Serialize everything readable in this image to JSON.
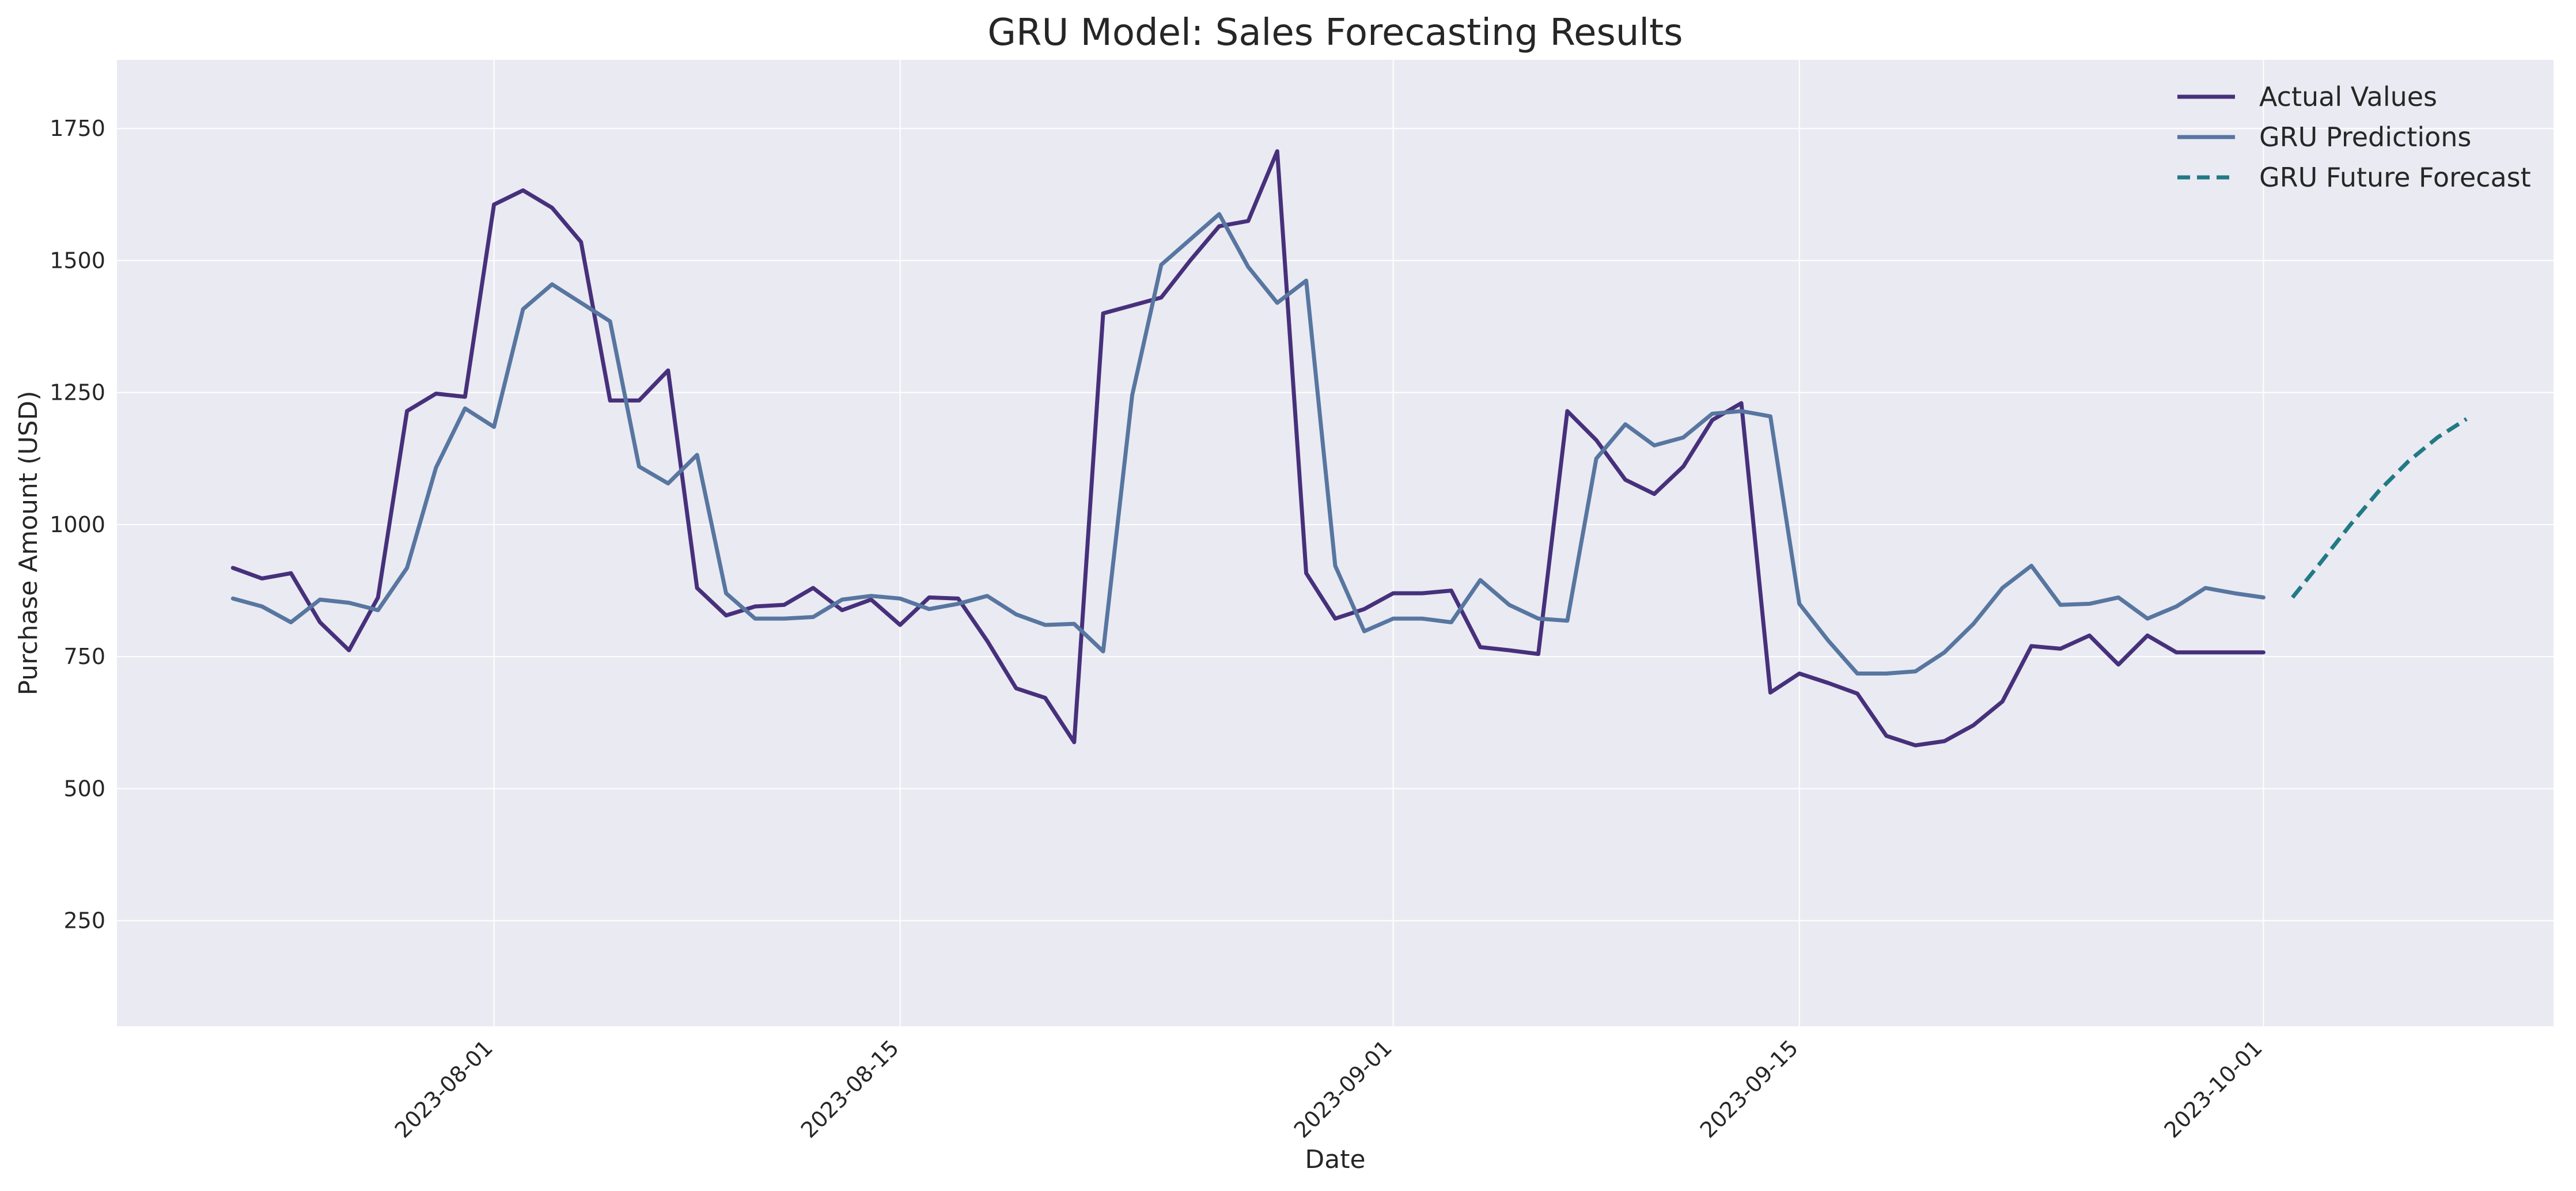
{
  "chart_data": {
    "type": "line",
    "title": "GRU Model: Sales Forecasting Results",
    "xlabel": "Date",
    "ylabel": "Purchase Amount (USD)",
    "x_ticks": [
      "2023-08-01",
      "2023-08-15",
      "2023-09-01",
      "2023-09-15",
      "2023-10-01"
    ],
    "y_ticks": [
      250,
      500,
      750,
      1000,
      1250,
      1500,
      1750
    ],
    "xlim": [
      "2023-07-19",
      "2023-10-11"
    ],
    "ylim": [
      50,
      1880
    ],
    "grid": true,
    "legend_position": "top-right",
    "series": [
      {
        "name": "Actual Values",
        "color": "#47307b",
        "style": "solid",
        "x": [
          "2023-07-23",
          "2023-07-24",
          "2023-07-25",
          "2023-07-26",
          "2023-07-27",
          "2023-07-28",
          "2023-07-29",
          "2023-07-30",
          "2023-07-31",
          "2023-08-01",
          "2023-08-02",
          "2023-08-03",
          "2023-08-04",
          "2023-08-05",
          "2023-08-06",
          "2023-08-07",
          "2023-08-08",
          "2023-08-09",
          "2023-08-10",
          "2023-08-11",
          "2023-08-12",
          "2023-08-13",
          "2023-08-14",
          "2023-08-15",
          "2023-08-16",
          "2023-08-17",
          "2023-08-18",
          "2023-08-19",
          "2023-08-20",
          "2023-08-21",
          "2023-08-22",
          "2023-08-23",
          "2023-08-24",
          "2023-08-25",
          "2023-08-26",
          "2023-08-27",
          "2023-08-28",
          "2023-08-29",
          "2023-08-30",
          "2023-08-31",
          "2023-09-01",
          "2023-09-02",
          "2023-09-03",
          "2023-09-04",
          "2023-09-05",
          "2023-09-06",
          "2023-09-07",
          "2023-09-08",
          "2023-09-09",
          "2023-09-10",
          "2023-09-11",
          "2023-09-12",
          "2023-09-13",
          "2023-09-14",
          "2023-09-15",
          "2023-09-16",
          "2023-09-17",
          "2023-09-18",
          "2023-09-19",
          "2023-09-20",
          "2023-09-21",
          "2023-09-22",
          "2023-09-23",
          "2023-09-24",
          "2023-09-25",
          "2023-09-26",
          "2023-09-27",
          "2023-09-28",
          "2023-09-29",
          "2023-09-30",
          "2023-10-01"
        ],
        "values": [
          918,
          898,
          908,
          815,
          762,
          862,
          1215,
          1248,
          1242,
          1606,
          1633,
          1600,
          1535,
          1235,
          1235,
          1292,
          880,
          828,
          845,
          848,
          880,
          838,
          858,
          810,
          862,
          860,
          780,
          690,
          672,
          588,
          1400,
          1415,
          1430,
          1500,
          1565,
          1575,
          1707,
          908,
          822,
          840,
          870,
          870,
          875,
          768,
          762,
          755,
          1215,
          1160,
          1085,
          1058,
          1110,
          1198,
          1230,
          682,
          718,
          700,
          680,
          600,
          582,
          590,
          620,
          665,
          770,
          765,
          790,
          735,
          790,
          758,
          758,
          758,
          758
        ]
      },
      {
        "name": "GRU Predictions",
        "color": "#5776a0",
        "style": "solid",
        "x": [
          "2023-07-23",
          "2023-07-24",
          "2023-07-25",
          "2023-07-26",
          "2023-07-27",
          "2023-07-28",
          "2023-07-29",
          "2023-07-30",
          "2023-07-31",
          "2023-08-01",
          "2023-08-02",
          "2023-08-03",
          "2023-08-04",
          "2023-08-05",
          "2023-08-06",
          "2023-08-07",
          "2023-08-08",
          "2023-08-09",
          "2023-08-10",
          "2023-08-11",
          "2023-08-12",
          "2023-08-13",
          "2023-08-14",
          "2023-08-15",
          "2023-08-16",
          "2023-08-17",
          "2023-08-18",
          "2023-08-19",
          "2023-08-20",
          "2023-08-21",
          "2023-08-22",
          "2023-08-23",
          "2023-08-24",
          "2023-08-25",
          "2023-08-26",
          "2023-08-27",
          "2023-08-28",
          "2023-08-29",
          "2023-08-30",
          "2023-08-31",
          "2023-09-01",
          "2023-09-02",
          "2023-09-03",
          "2023-09-04",
          "2023-09-05",
          "2023-09-06",
          "2023-09-07",
          "2023-09-08",
          "2023-09-09",
          "2023-09-10",
          "2023-09-11",
          "2023-09-12",
          "2023-09-13",
          "2023-09-14",
          "2023-09-15",
          "2023-09-16",
          "2023-09-17",
          "2023-09-18",
          "2023-09-19",
          "2023-09-20",
          "2023-09-21",
          "2023-09-22",
          "2023-09-23",
          "2023-09-24",
          "2023-09-25",
          "2023-09-26",
          "2023-09-27",
          "2023-09-28",
          "2023-09-29",
          "2023-09-30",
          "2023-10-01"
        ],
        "values": [
          860,
          845,
          815,
          858,
          852,
          838,
          918,
          1108,
          1220,
          1185,
          1408,
          1455,
          1420,
          1385,
          1110,
          1078,
          1132,
          870,
          822,
          822,
          825,
          858,
          865,
          860,
          840,
          850,
          865,
          830,
          810,
          812,
          760,
          1245,
          1492,
          1540,
          1588,
          1488,
          1420,
          1462,
          922,
          798,
          822,
          822,
          815,
          895,
          848,
          822,
          818,
          1125,
          1190,
          1150,
          1165,
          1210,
          1215,
          1205,
          850,
          780,
          718,
          718,
          722,
          758,
          812,
          880,
          922,
          848,
          850,
          862,
          822,
          845,
          880,
          870,
          862
        ]
      },
      {
        "name": "GRU Future Forecast",
        "color": "#217a84",
        "style": "dashed",
        "x": [
          "2023-10-02",
          "2023-10-03",
          "2023-10-04",
          "2023-10-05",
          "2023-10-06",
          "2023-10-07",
          "2023-10-08"
        ],
        "values": [
          862,
          930,
          1000,
          1065,
          1120,
          1165,
          1200
        ]
      }
    ]
  }
}
